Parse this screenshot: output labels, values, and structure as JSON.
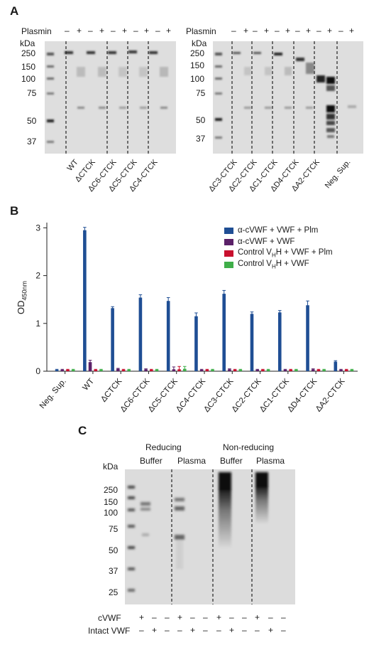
{
  "panelA": {
    "letter": "A",
    "plasmin_label": "Plasmin",
    "kda_label": "kDa",
    "left": {
      "signs": [
        "–",
        "+",
        "–",
        "+",
        "–",
        "+",
        "–",
        "+",
        "–",
        "+"
      ],
      "mw_markers": [
        "250",
        "150",
        "100",
        "75",
        "50",
        "37"
      ],
      "lanes": [
        "WT",
        "ΔCTCK",
        "ΔC6-CTCK",
        "ΔC5-CTCK",
        "ΔC4-CTCK"
      ]
    },
    "right": {
      "signs": [
        "–",
        "+",
        "–",
        "+",
        "–",
        "+",
        "–",
        "+",
        "–",
        "+",
        "–",
        "+"
      ],
      "mw_markers": [
        "250",
        "150",
        "100",
        "75",
        "50",
        "37"
      ],
      "lanes": [
        "ΔC3-CTCK",
        "ΔC2-CTCK",
        "ΔC1-CTCK",
        "ΔD4-CTCK",
        "ΔA2-CTCK",
        "Neg. Sup."
      ]
    }
  },
  "panelB": {
    "letter": "B",
    "legend": [
      {
        "label": "α-cVWF + VWF + Plm",
        "color": "#1f4e94"
      },
      {
        "label": "α-cVWF + VWF",
        "color": "#5b2168"
      },
      {
        "label": "Control VHH + VWF + Plm",
        "color": "#c8102e"
      },
      {
        "label": "Control VHH + VWF",
        "color": "#3fae49"
      }
    ]
  },
  "chart_data": {
    "type": "bar",
    "ylabel": "OD450nm",
    "ylim": [
      0,
      3.05
    ],
    "yticks": [
      "0",
      "1",
      "2",
      "3"
    ],
    "categories": [
      "Neg. Sup.",
      "WT",
      "ΔCTCK",
      "ΔC6-CTCK",
      "ΔC5-CTCK",
      "ΔC4-CTCK",
      "ΔC3-CTCK",
      "ΔC2-CTCK",
      "ΔC1-CTCK",
      "ΔD4-CTCK",
      "ΔA2-CTCK"
    ],
    "series": [
      {
        "name": "α-cVWF + VWF + Plm",
        "color": "#1f4e94",
        "values": [
          0.03,
          2.95,
          1.32,
          1.54,
          1.47,
          1.15,
          1.62,
          1.2,
          1.23,
          1.38,
          0.2
        ],
        "errors": [
          0.01,
          0.06,
          0.03,
          0.06,
          0.07,
          0.07,
          0.07,
          0.04,
          0.04,
          0.09,
          0.02
        ]
      },
      {
        "name": "α-cVWF + VWF",
        "color": "#5b2168",
        "values": [
          0.03,
          0.19,
          0.05,
          0.04,
          0.04,
          0.03,
          0.04,
          0.03,
          0.03,
          0.04,
          0.03
        ],
        "errors": [
          0.01,
          0.04,
          0.01,
          0.01,
          0.05,
          0.01,
          0.01,
          0.01,
          0.01,
          0.01,
          0.01
        ]
      },
      {
        "name": "Control VHH + VWF + Plm",
        "color": "#c8102e",
        "values": [
          0.03,
          0.03,
          0.03,
          0.03,
          0.04,
          0.03,
          0.03,
          0.03,
          0.03,
          0.03,
          0.03
        ],
        "errors": [
          0.01,
          0.01,
          0.01,
          0.01,
          0.06,
          0.01,
          0.01,
          0.01,
          0.01,
          0.01,
          0.01
        ]
      },
      {
        "name": "Control VHH + VWF",
        "color": "#3fae49",
        "values": [
          0.03,
          0.03,
          0.03,
          0.03,
          0.05,
          0.03,
          0.03,
          0.03,
          0.03,
          0.03,
          0.03
        ],
        "errors": [
          0.01,
          0.01,
          0.01,
          0.01,
          0.05,
          0.01,
          0.01,
          0.01,
          0.01,
          0.01,
          0.01
        ]
      }
    ]
  },
  "panelC": {
    "letter": "C",
    "kda_label": "kDa",
    "groups": {
      "reducing": "Reducing",
      "nonreducing": "Non-reducing"
    },
    "sub": {
      "buffer1": "Buffer",
      "plasma1": "Plasma",
      "buffer2": "Buffer",
      "plasma2": "Plasma"
    },
    "mw_markers": [
      "250",
      "150",
      "100",
      "75",
      "50",
      "37",
      "25"
    ],
    "row_labels": [
      "cVWF",
      "Intact VWF"
    ],
    "cvwf_signs": [
      "+",
      "–",
      "–",
      "+",
      "–",
      "–",
      "+",
      "–",
      "–",
      "+",
      "–",
      "–"
    ],
    "intact_signs": [
      "–",
      "+",
      "–",
      "–",
      "+",
      "–",
      "–",
      "+",
      "–",
      "–",
      "+",
      "–"
    ]
  }
}
